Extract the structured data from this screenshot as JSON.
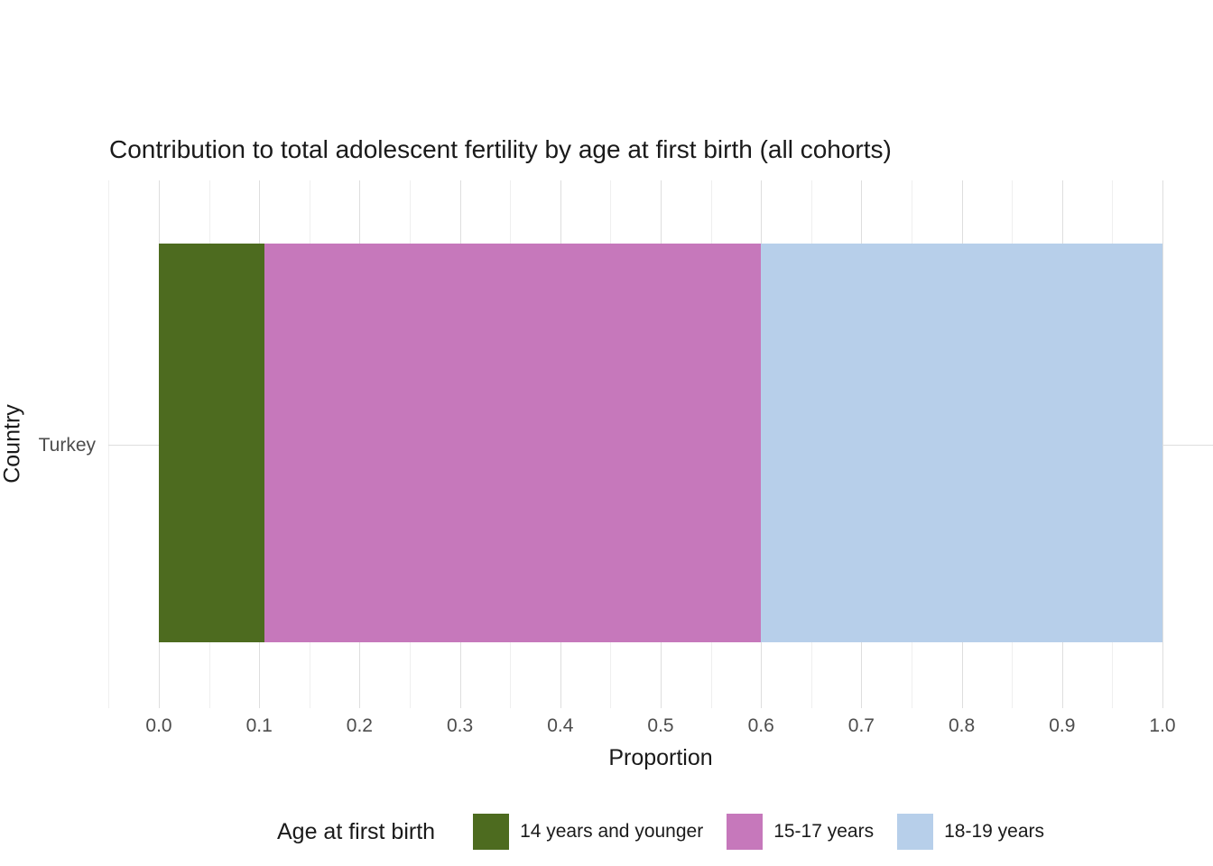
{
  "chart_data": {
    "type": "bar",
    "orientation": "horizontal",
    "stacked": true,
    "title": "Contribution to total adolescent fertility by age at first birth (all cohorts)",
    "xlabel": "Proportion",
    "ylabel": "Country",
    "categories": [
      "Turkey"
    ],
    "series": [
      {
        "name": "14 years and younger",
        "color": "#4d6b1f",
        "values": [
          0.105
        ]
      },
      {
        "name": "15-17 years",
        "color": "#c678bb",
        "values": [
          0.495
        ]
      },
      {
        "name": "18-19 years",
        "color": "#b7cfea",
        "values": [
          0.4
        ]
      }
    ],
    "xlim": [
      0,
      1
    ],
    "x_ticks": [
      {
        "value": 0.0,
        "label": "0.0"
      },
      {
        "value": 0.1,
        "label": "0.1"
      },
      {
        "value": 0.2,
        "label": "0.2"
      },
      {
        "value": 0.3,
        "label": "0.3"
      },
      {
        "value": 0.4,
        "label": "0.4"
      },
      {
        "value": 0.5,
        "label": "0.5"
      },
      {
        "value": 0.6,
        "label": "0.6"
      },
      {
        "value": 0.7,
        "label": "0.7"
      },
      {
        "value": 0.8,
        "label": "0.8"
      },
      {
        "value": 0.9,
        "label": "0.9"
      },
      {
        "value": 1.0,
        "label": "1.0"
      }
    ],
    "x_minor_ticks": [
      -0.05,
      0.05,
      0.15,
      0.25,
      0.35,
      0.45,
      0.55,
      0.65,
      0.75,
      0.85,
      0.95,
      1.05
    ],
    "grid": true,
    "legend": {
      "title": "Age at first birth",
      "position": "bottom"
    },
    "colors": {
      "panel_background": "#ffffff",
      "gridline_major": "#dedede",
      "gridline_minor": "#efefef",
      "axis_text": "#4d4d4d",
      "title_text": "#1a1a1a"
    }
  }
}
